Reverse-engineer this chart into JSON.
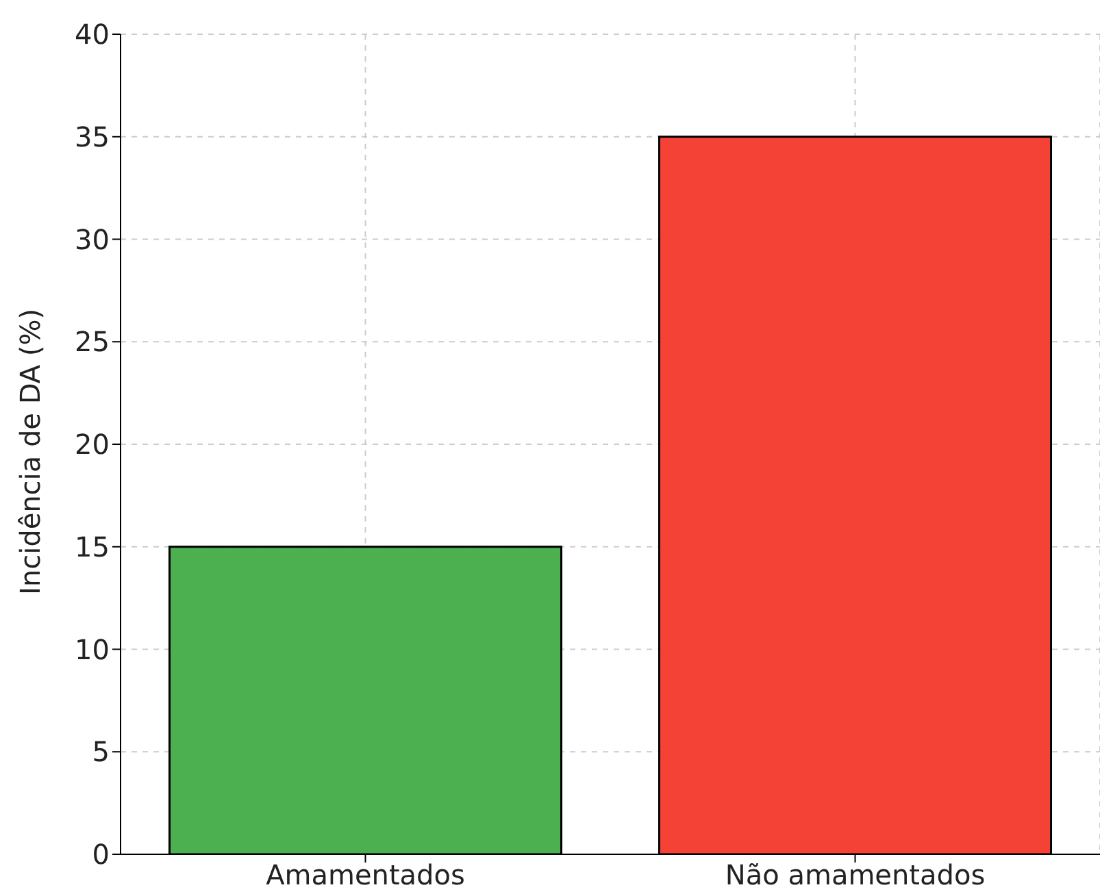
{
  "chart_data": {
    "type": "bar",
    "ylabel": "Incidência de DA (%)",
    "categories": [
      "Amamentados",
      "Não amamentados"
    ],
    "values": [
      15,
      35
    ],
    "colors": [
      "#4caf50",
      "#f44336"
    ],
    "ylim": [
      0,
      40
    ],
    "yticks": [
      0,
      5,
      10,
      15,
      20,
      25,
      30,
      35,
      40
    ],
    "grid": true
  }
}
